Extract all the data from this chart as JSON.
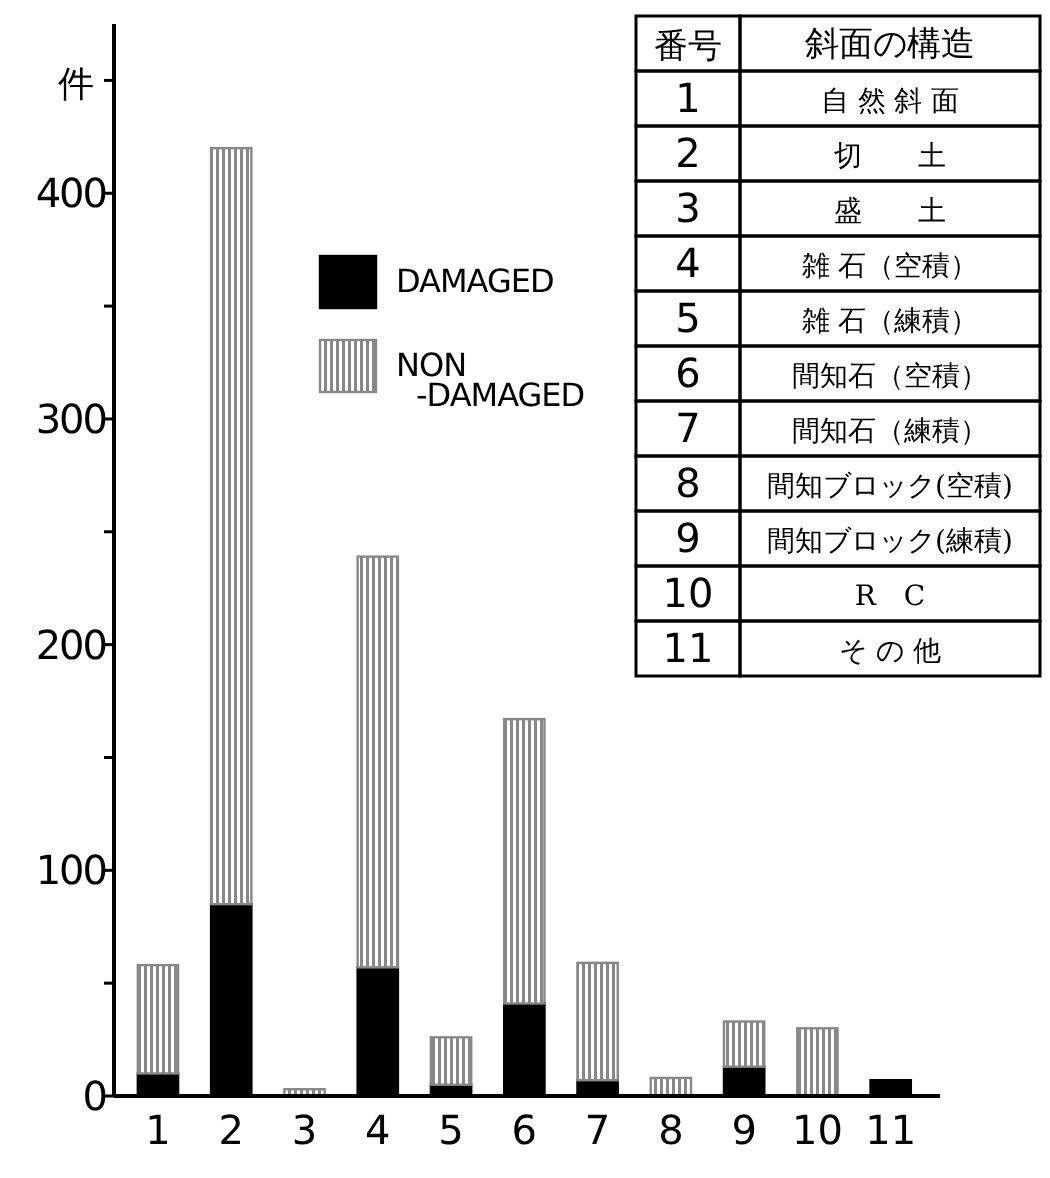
{
  "chart_data": {
    "type": "bar",
    "stacked": true,
    "ylabel": "件",
    "categories": [
      "1",
      "2",
      "3",
      "4",
      "5",
      "6",
      "7",
      "8",
      "9",
      "10",
      "11"
    ],
    "series": [
      {
        "name": "DAMAGED",
        "color": "#000000",
        "values": [
          10,
          85,
          0,
          57,
          5,
          41,
          7,
          0,
          13,
          0,
          7
        ]
      },
      {
        "name": "NON\n-DAMAGED",
        "color": "#888888",
        "values": [
          48,
          335,
          3,
          182,
          21,
          126,
          52,
          8,
          20,
          30,
          0
        ]
      }
    ],
    "ylim": [
      0,
      475
    ],
    "yticks": [
      0,
      {
        "value": 50,
        "label": null
      },
      100,
      {
        "value": 150,
        "label": null
      },
      200,
      {
        "value": 250,
        "label": null
      },
      300,
      {
        "value": 350,
        "label": null
      },
      400,
      {
        "value": 450,
        "label": null
      }
    ],
    "legend": "top",
    "annotations": [
      "番号",
      "斜面の構造",
      "自 然 斜 面",
      "切　　土",
      "盛　　土",
      "雑 石（空積）",
      "雑 石（練積）",
      "間知石（空積）",
      "間知石（練積）",
      "間知ブロック(空積)",
      "間知ブロック(練積)",
      "R　C",
      "そ の 他"
    ]
  }
}
